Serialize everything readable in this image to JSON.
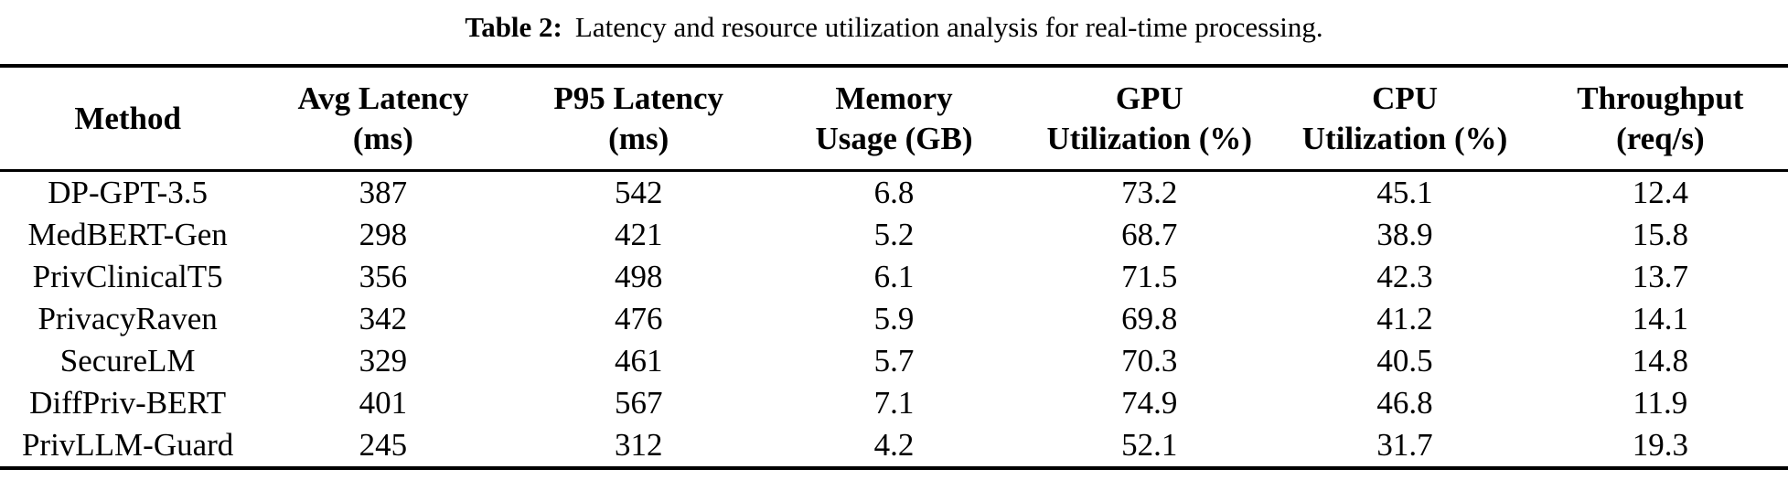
{
  "caption": {
    "label": "Table 2:",
    "text": "Latency and resource utilization analysis for real-time processing."
  },
  "table": {
    "headers": [
      {
        "line1": "Method",
        "line2": ""
      },
      {
        "line1": "Avg Latency",
        "line2": "(ms)"
      },
      {
        "line1": "P95 Latency",
        "line2": "(ms)"
      },
      {
        "line1": "Memory",
        "line2": "Usage (GB)"
      },
      {
        "line1": "GPU",
        "line2": "Utilization (%)"
      },
      {
        "line1": "CPU",
        "line2": "Utilization (%)"
      },
      {
        "line1": "Throughput",
        "line2": "(req/s)"
      }
    ],
    "rows": [
      [
        "DP-GPT-3.5",
        "387",
        "542",
        "6.8",
        "73.2",
        "45.1",
        "12.4"
      ],
      [
        "MedBERT-Gen",
        "298",
        "421",
        "5.2",
        "68.7",
        "38.9",
        "15.8"
      ],
      [
        "PrivClinicalT5",
        "356",
        "498",
        "6.1",
        "71.5",
        "42.3",
        "13.7"
      ],
      [
        "PrivacyRaven",
        "342",
        "476",
        "5.9",
        "69.8",
        "41.2",
        "14.1"
      ],
      [
        "SecureLM",
        "329",
        "461",
        "5.7",
        "70.3",
        "40.5",
        "14.8"
      ],
      [
        "DiffPriv-BERT",
        "401",
        "567",
        "7.1",
        "74.9",
        "46.8",
        "11.9"
      ],
      [
        "PrivLLM-Guard",
        "245",
        "312",
        "4.2",
        "52.1",
        "31.7",
        "19.3"
      ]
    ]
  },
  "colors": {
    "background": "#ffffff",
    "text": "#000000",
    "rule": "#000000"
  }
}
